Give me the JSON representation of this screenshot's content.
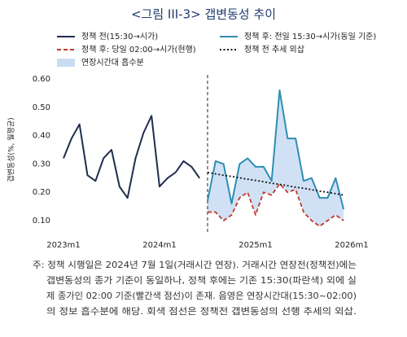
{
  "chart_data": {
    "type": "line",
    "title": "<그림 III-3> 갭변동성 추이",
    "y_label": "갭변동성(%, 월평균)",
    "categories": [
      "2023m1",
      null,
      null,
      null,
      null,
      null,
      null,
      null,
      null,
      null,
      null,
      null,
      "2024m1",
      null,
      null,
      null,
      null,
      null,
      null,
      null,
      null,
      null,
      null,
      null,
      "2025m1",
      null,
      null,
      null,
      null,
      null,
      null,
      null,
      null,
      null,
      null,
      null,
      "2026m1"
    ],
    "series": [
      {
        "name": "정책 전(15:30→시가)",
        "color": "#1f2d4e",
        "style": "solid",
        "values": [
          0.32,
          0.39,
          0.44,
          0.26,
          0.24,
          0.32,
          0.35,
          0.22,
          0.18,
          0.32,
          0.41,
          0.47,
          0.22,
          0.25,
          0.27,
          0.31,
          0.29,
          0.25,
          null,
          null,
          null,
          null,
          null,
          null,
          null,
          null,
          null,
          null,
          null,
          null,
          null,
          null,
          null,
          null,
          null,
          null,
          null
        ]
      },
      {
        "name": "정책 후: 전일 15:30→시가(동일 기준)",
        "color": "#2e8fb0",
        "style": "solid",
        "values": [
          null,
          null,
          null,
          null,
          null,
          null,
          null,
          null,
          null,
          null,
          null,
          null,
          null,
          null,
          null,
          null,
          null,
          null,
          0.17,
          0.31,
          0.3,
          0.16,
          0.3,
          0.32,
          0.29,
          0.29,
          0.24,
          0.56,
          0.39,
          0.39,
          0.24,
          0.25,
          0.18,
          0.18,
          0.25,
          0.14,
          null
        ]
      },
      {
        "name": "정책 후: 당일 02:00→시가(현행)",
        "color": "#c0392b",
        "style": "dashed",
        "values": [
          null,
          null,
          null,
          null,
          null,
          null,
          null,
          null,
          null,
          null,
          null,
          null,
          null,
          null,
          null,
          null,
          null,
          null,
          0.13,
          0.13,
          0.1,
          0.12,
          0.18,
          0.2,
          0.12,
          0.2,
          0.19,
          0.23,
          0.2,
          0.21,
          0.13,
          0.1,
          0.08,
          0.1,
          0.12,
          0.1,
          null
        ]
      },
      {
        "name": "정책 전 추세 외삽",
        "color": "#111111",
        "style": "dotted",
        "values": [
          null,
          null,
          null,
          null,
          null,
          null,
          null,
          null,
          null,
          null,
          null,
          null,
          null,
          null,
          null,
          null,
          null,
          null,
          0.27,
          0.265,
          0.26,
          0.256,
          0.251,
          0.246,
          0.242,
          0.237,
          0.232,
          0.228,
          0.223,
          0.218,
          0.214,
          0.209,
          0.204,
          0.2,
          0.195,
          0.19,
          null
        ]
      }
    ],
    "area": {
      "name": "연장시간대 흡수분",
      "color": "#c9dcf3"
    },
    "ylim": [
      0.08,
      0.62
    ],
    "yticks": [
      {
        "value": 0.1,
        "label": "0.10"
      },
      {
        "value": 0.2,
        "label": "0.20"
      },
      {
        "value": 0.3,
        "label": "0.30"
      },
      {
        "value": 0.4,
        "label": "0.40"
      },
      {
        "value": 0.5,
        "label": "0.50"
      },
      {
        "value": 0.6,
        "label": "0.60"
      }
    ],
    "notes": [
      "주: 정책 시행일은 2024년 7월 1일(거래시간 연장). 거래시간 연장전(정책전)에는",
      "갭변동성의 종가 기준이 동일하나, 정책 후에는 기존 15:30(파란색) 외에 실",
      "제 종가인 02:00 기준(빨간색 점선)이 존재. 음영은 연장시간대(15:30~02:00)",
      "의 정보 흡수분에 해당. 회색 점선은 정책전 갭변동성의 선행 추세의 외삽."
    ]
  }
}
